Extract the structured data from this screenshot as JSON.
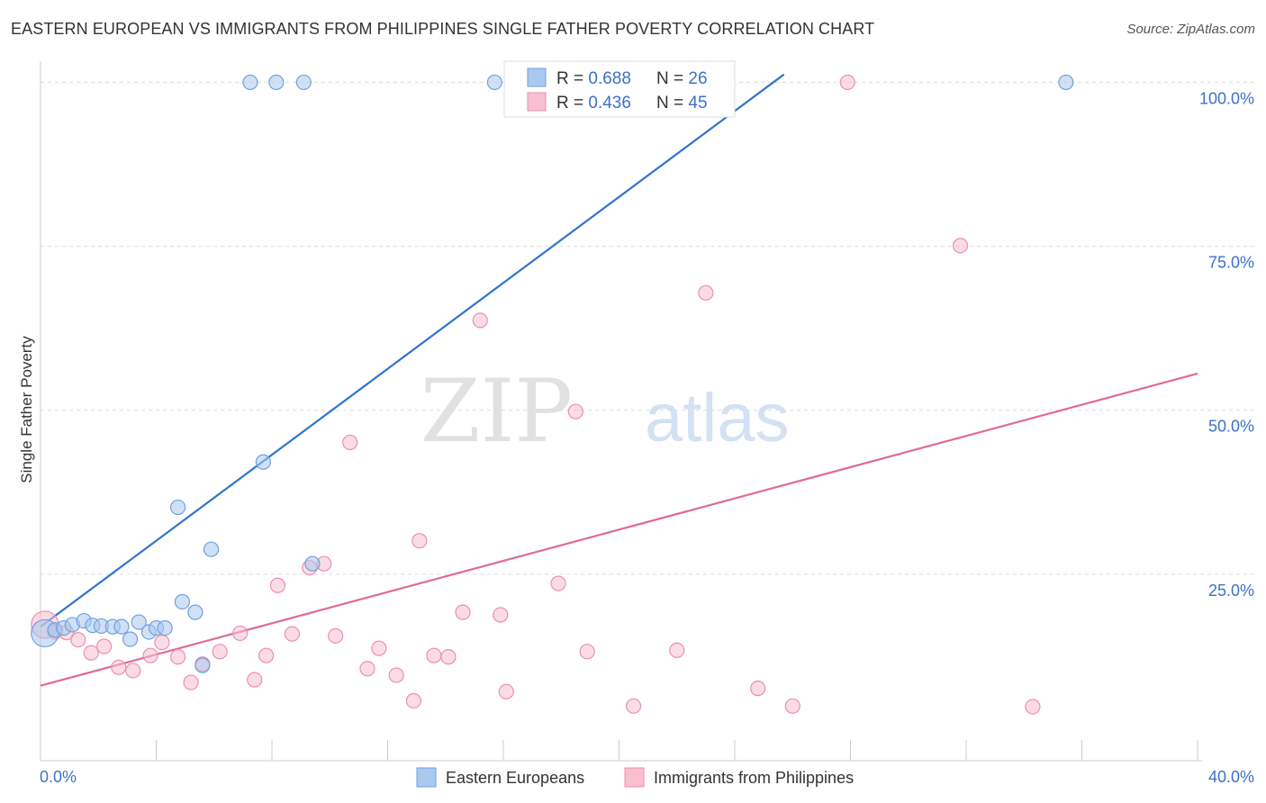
{
  "header": {
    "title": "EASTERN EUROPEAN VS IMMIGRANTS FROM PHILIPPINES SINGLE FATHER POVERTY CORRELATION CHART",
    "source": "Source: ZipAtlas.com"
  },
  "watermark": {
    "part1": "ZIP",
    "part2": "atlas"
  },
  "stats": [
    {
      "r_label": "R = ",
      "r_value": "0.688",
      "n_label": "N = ",
      "n_value": "26"
    },
    {
      "r_label": "R = ",
      "r_value": "0.436",
      "n_label": "N = ",
      "n_value": "45"
    }
  ],
  "legend": [
    {
      "label": "Eastern Europeans"
    },
    {
      "label": "Immigrants from Philippines"
    }
  ],
  "colors": {
    "blue_fill": "#aac9ef",
    "blue_stroke": "#6fa0e0",
    "blue_line": "#2f74d0",
    "pink_fill": "#f7bfd0",
    "pink_stroke": "#eb8fae",
    "pink_line": "#e06a95",
    "accent_text": "#3b72c8",
    "grid": "#dcdcdc"
  },
  "chart_data": {
    "type": "scatter",
    "title": "EASTERN EUROPEAN VS IMMIGRANTS FROM PHILIPPINES SINGLE FATHER POVERTY CORRELATION CHART",
    "xlabel": "",
    "ylabel": "Single Father Poverty",
    "xlim": [
      0,
      40
    ],
    "ylim": [
      0,
      105
    ],
    "x_tick_labels": [
      "0.0%",
      "40.0%"
    ],
    "y_ticks": [
      25,
      50,
      75,
      100
    ],
    "y_tick_labels": [
      "25.0%",
      "50.0%",
      "75.0%",
      "100.0%"
    ],
    "grid": true,
    "legend_position": "bottom",
    "series": [
      {
        "name": "Eastern Europeans",
        "r": 0.688,
        "n": 26,
        "trend": {
          "x0": 0,
          "y0": 17.0,
          "x1": 25.7,
          "y1": 101.2
        },
        "points": [
          {
            "x": 0.15,
            "y": 16.0,
            "big": true
          },
          {
            "x": 0.5,
            "y": 16.5
          },
          {
            "x": 0.8,
            "y": 16.8
          },
          {
            "x": 1.1,
            "y": 17.3
          },
          {
            "x": 1.5,
            "y": 17.9
          },
          {
            "x": 1.8,
            "y": 17.2
          },
          {
            "x": 2.1,
            "y": 17.1
          },
          {
            "x": 2.5,
            "y": 17.0
          },
          {
            "x": 2.8,
            "y": 17.0
          },
          {
            "x": 3.1,
            "y": 15.1
          },
          {
            "x": 3.4,
            "y": 17.7
          },
          {
            "x": 3.75,
            "y": 16.2
          },
          {
            "x": 4.0,
            "y": 16.8
          },
          {
            "x": 4.3,
            "y": 16.8
          },
          {
            "x": 4.75,
            "y": 35.2
          },
          {
            "x": 4.9,
            "y": 20.8
          },
          {
            "x": 5.35,
            "y": 19.2
          },
          {
            "x": 5.6,
            "y": 11.1
          },
          {
            "x": 5.9,
            "y": 28.8
          },
          {
            "x": 7.7,
            "y": 42.1
          },
          {
            "x": 9.4,
            "y": 26.6
          },
          {
            "x": 7.25,
            "y": 100.0
          },
          {
            "x": 8.15,
            "y": 100.0
          },
          {
            "x": 9.1,
            "y": 100.0
          },
          {
            "x": 15.7,
            "y": 100.0
          },
          {
            "x": 35.45,
            "y": 100.0
          }
        ]
      },
      {
        "name": "Immigrants from Philippines",
        "r": 0.436,
        "n": 45,
        "trend": {
          "x0": 0,
          "y0": 8.0,
          "x1": 40,
          "y1": 55.6
        },
        "points": [
          {
            "x": 0.15,
            "y": 17.3,
            "big": true
          },
          {
            "x": 0.5,
            "y": 16.2
          },
          {
            "x": 0.9,
            "y": 16.1
          },
          {
            "x": 1.3,
            "y": 15.0
          },
          {
            "x": 1.75,
            "y": 13.0
          },
          {
            "x": 2.2,
            "y": 14.0
          },
          {
            "x": 2.7,
            "y": 10.8
          },
          {
            "x": 3.2,
            "y": 10.3
          },
          {
            "x": 3.8,
            "y": 12.6
          },
          {
            "x": 4.2,
            "y": 14.6
          },
          {
            "x": 4.75,
            "y": 12.4
          },
          {
            "x": 5.2,
            "y": 8.5
          },
          {
            "x": 5.6,
            "y": 11.3
          },
          {
            "x": 6.2,
            "y": 13.2
          },
          {
            "x": 6.9,
            "y": 16.0
          },
          {
            "x": 7.4,
            "y": 8.9
          },
          {
            "x": 7.8,
            "y": 12.6
          },
          {
            "x": 8.2,
            "y": 23.3
          },
          {
            "x": 8.7,
            "y": 15.9
          },
          {
            "x": 9.3,
            "y": 26.0
          },
          {
            "x": 9.8,
            "y": 26.6
          },
          {
            "x": 10.2,
            "y": 15.6
          },
          {
            "x": 10.7,
            "y": 45.1
          },
          {
            "x": 11.3,
            "y": 10.6
          },
          {
            "x": 11.7,
            "y": 13.7
          },
          {
            "x": 12.3,
            "y": 9.6
          },
          {
            "x": 12.9,
            "y": 5.7
          },
          {
            "x": 13.1,
            "y": 30.1
          },
          {
            "x": 13.6,
            "y": 12.6
          },
          {
            "x": 14.1,
            "y": 12.4
          },
          {
            "x": 14.6,
            "y": 19.2
          },
          {
            "x": 15.2,
            "y": 63.7
          },
          {
            "x": 15.9,
            "y": 18.8
          },
          {
            "x": 16.1,
            "y": 7.1
          },
          {
            "x": 17.9,
            "y": 23.6
          },
          {
            "x": 18.5,
            "y": 49.8
          },
          {
            "x": 18.9,
            "y": 13.2
          },
          {
            "x": 20.5,
            "y": 4.9
          },
          {
            "x": 22.0,
            "y": 13.4
          },
          {
            "x": 23.0,
            "y": 67.9
          },
          {
            "x": 24.8,
            "y": 7.6
          },
          {
            "x": 26.0,
            "y": 4.9
          },
          {
            "x": 27.9,
            "y": 100.0
          },
          {
            "x": 31.8,
            "y": 75.1
          },
          {
            "x": 34.3,
            "y": 4.8
          }
        ]
      }
    ]
  }
}
